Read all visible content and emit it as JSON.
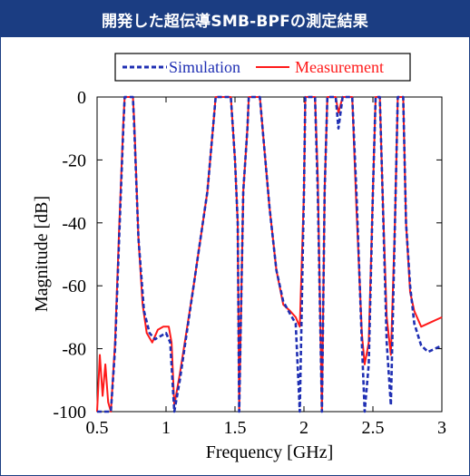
{
  "header": {
    "title": "開発した超伝導SMB-BPFの測定結果"
  },
  "colors": {
    "header_bg": "#1b3d82",
    "simulation": "#1f2fb3",
    "measurement": "#ff1a1a"
  },
  "chart_data": {
    "type": "line",
    "xlabel": "Frequency [GHz]",
    "ylabel": "Magnitude [dB]",
    "xlim": [
      0.5,
      3.0
    ],
    "ylim": [
      -100,
      0
    ],
    "xticks": [
      0.5,
      1,
      1.5,
      2,
      2.5,
      3
    ],
    "xtick_labels": [
      "0.5",
      "1",
      "1.5",
      "2",
      "2.5",
      "3"
    ],
    "yticks": [
      0,
      -20,
      -40,
      -60,
      -80,
      -100
    ],
    "ytick_labels": [
      "0",
      "-20",
      "-40",
      "-60",
      "-80",
      "-100"
    ],
    "grid": false,
    "legend_position": "top",
    "series": [
      {
        "name": "Simulation",
        "style": "dashed",
        "points": [
          [
            0.5,
            -100
          ],
          [
            0.6,
            -100
          ],
          [
            0.63,
            -80
          ],
          [
            0.66,
            -45
          ],
          [
            0.69,
            -10
          ],
          [
            0.7,
            0
          ],
          [
            0.76,
            0
          ],
          [
            0.77,
            -10
          ],
          [
            0.8,
            -45
          ],
          [
            0.84,
            -68
          ],
          [
            0.88,
            -75
          ],
          [
            0.92,
            -77
          ],
          [
            0.96,
            -76
          ],
          [
            1.0,
            -75
          ],
          [
            1.03,
            -78
          ],
          [
            1.06,
            -100
          ],
          [
            1.1,
            -90
          ],
          [
            1.2,
            -60
          ],
          [
            1.3,
            -30
          ],
          [
            1.34,
            -10
          ],
          [
            1.36,
            0
          ],
          [
            1.47,
            0
          ],
          [
            1.5,
            -20
          ],
          [
            1.52,
            -40
          ],
          [
            1.53,
            -100
          ],
          [
            1.56,
            -30
          ],
          [
            1.59,
            -10
          ],
          [
            1.6,
            0
          ],
          [
            1.68,
            0
          ],
          [
            1.7,
            -10
          ],
          [
            1.75,
            -35
          ],
          [
            1.8,
            -55
          ],
          [
            1.85,
            -65
          ],
          [
            1.9,
            -69
          ],
          [
            1.94,
            -72
          ],
          [
            1.97,
            -100
          ],
          [
            2.0,
            -30
          ],
          [
            2.01,
            0
          ],
          [
            2.08,
            0
          ],
          [
            2.1,
            -30
          ],
          [
            2.13,
            -100
          ],
          [
            2.15,
            -30
          ],
          [
            2.17,
            0
          ],
          [
            2.23,
            0
          ],
          [
            2.25,
            -10
          ],
          [
            2.28,
            0
          ],
          [
            2.35,
            0
          ],
          [
            2.38,
            -30
          ],
          [
            2.42,
            -78
          ],
          [
            2.44,
            -100
          ],
          [
            2.47,
            -85
          ],
          [
            2.5,
            -30
          ],
          [
            2.52,
            0
          ],
          [
            2.55,
            0
          ],
          [
            2.57,
            -30
          ],
          [
            2.6,
            -78
          ],
          [
            2.63,
            -98
          ],
          [
            2.66,
            -40
          ],
          [
            2.68,
            0
          ],
          [
            2.72,
            0
          ],
          [
            2.74,
            -40
          ],
          [
            2.77,
            -60
          ],
          [
            2.8,
            -72
          ],
          [
            2.85,
            -79
          ],
          [
            2.9,
            -81
          ],
          [
            3.0,
            -79
          ]
        ]
      },
      {
        "name": "Measurement",
        "style": "solid",
        "points": [
          [
            0.5,
            -100
          ],
          [
            0.52,
            -82
          ],
          [
            0.54,
            -95
          ],
          [
            0.56,
            -85
          ],
          [
            0.58,
            -97
          ],
          [
            0.6,
            -100
          ],
          [
            0.63,
            -78
          ],
          [
            0.66,
            -42
          ],
          [
            0.69,
            -8
          ],
          [
            0.7,
            0
          ],
          [
            0.76,
            0
          ],
          [
            0.77,
            -8
          ],
          [
            0.8,
            -45
          ],
          [
            0.83,
            -66
          ],
          [
            0.86,
            -75
          ],
          [
            0.9,
            -78
          ],
          [
            0.94,
            -74
          ],
          [
            0.98,
            -73
          ],
          [
            1.02,
            -73
          ],
          [
            1.04,
            -78
          ],
          [
            1.06,
            -98
          ],
          [
            1.1,
            -88
          ],
          [
            1.2,
            -60
          ],
          [
            1.3,
            -30
          ],
          [
            1.34,
            -10
          ],
          [
            1.36,
            0
          ],
          [
            1.47,
            0
          ],
          [
            1.5,
            -20
          ],
          [
            1.52,
            -40
          ],
          [
            1.53,
            -100
          ],
          [
            1.56,
            -30
          ],
          [
            1.59,
            -10
          ],
          [
            1.6,
            0
          ],
          [
            1.68,
            0
          ],
          [
            1.7,
            -10
          ],
          [
            1.75,
            -35
          ],
          [
            1.8,
            -55
          ],
          [
            1.85,
            -66
          ],
          [
            1.9,
            -68
          ],
          [
            1.94,
            -70
          ],
          [
            1.97,
            -73
          ],
          [
            2.0,
            -30
          ],
          [
            2.01,
            0
          ],
          [
            2.08,
            0
          ],
          [
            2.1,
            -25
          ],
          [
            2.13,
            -100
          ],
          [
            2.15,
            -30
          ],
          [
            2.17,
            0
          ],
          [
            2.23,
            0
          ],
          [
            2.25,
            -5
          ],
          [
            2.28,
            0
          ],
          [
            2.35,
            0
          ],
          [
            2.38,
            -35
          ],
          [
            2.42,
            -75
          ],
          [
            2.44,
            -85
          ],
          [
            2.47,
            -78
          ],
          [
            2.5,
            -30
          ],
          [
            2.52,
            0
          ],
          [
            2.55,
            0
          ],
          [
            2.57,
            -30
          ],
          [
            2.6,
            -70
          ],
          [
            2.63,
            -82
          ],
          [
            2.66,
            -40
          ],
          [
            2.68,
            0
          ],
          [
            2.72,
            0
          ],
          [
            2.74,
            -40
          ],
          [
            2.77,
            -62
          ],
          [
            2.8,
            -68
          ],
          [
            2.85,
            -73
          ],
          [
            2.9,
            -72
          ],
          [
            3.0,
            -70
          ]
        ]
      }
    ]
  }
}
